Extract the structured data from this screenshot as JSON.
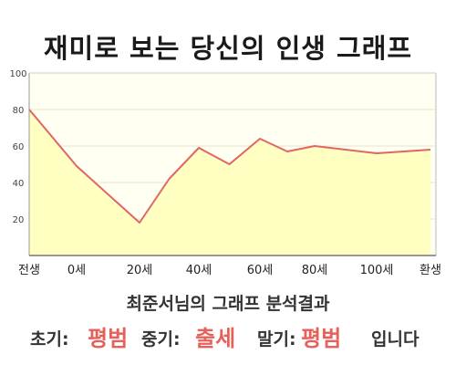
{
  "chart_data": {
    "type": "area",
    "title": "재미로 보는 당신의 인생 그래프",
    "x_tick_labels": [
      "전생",
      "0세",
      "20세",
      "40세",
      "60세",
      "80세",
      "100세",
      "환생"
    ],
    "y_ticks": [
      "20",
      "40",
      "60",
      "80",
      "100"
    ],
    "ylim": [
      0,
      100
    ],
    "grid": true,
    "series": [
      {
        "points": [
          {
            "x": "전생",
            "y": 80
          },
          {
            "x": "0세",
            "y": 49
          },
          {
            "x": "20세",
            "y": 18
          },
          {
            "x": "30세",
            "y": 42
          },
          {
            "x": "40세",
            "y": 59
          },
          {
            "x": "50세",
            "y": 50
          },
          {
            "x": "60세",
            "y": 64
          },
          {
            "x": "70세",
            "y": 57
          },
          {
            "x": "80세",
            "y": 60
          },
          {
            "x": "90세",
            "y": 58
          },
          {
            "x": "100세",
            "y": 56
          },
          {
            "x": "환생",
            "y": 58
          }
        ]
      }
    ],
    "colors": {
      "line": "#e06666",
      "fill": "#ffffc2",
      "plot_background": "#fffff2",
      "grid": "#e6e6cc"
    }
  },
  "summary": {
    "heading": "최준서님의 그래프 분석결과",
    "early_label": "초기:",
    "early_value": "평범",
    "middle_label": "중기:",
    "middle_value": "출세",
    "late_label": "말기:",
    "late_value": "평범",
    "suffix": "입니다"
  }
}
